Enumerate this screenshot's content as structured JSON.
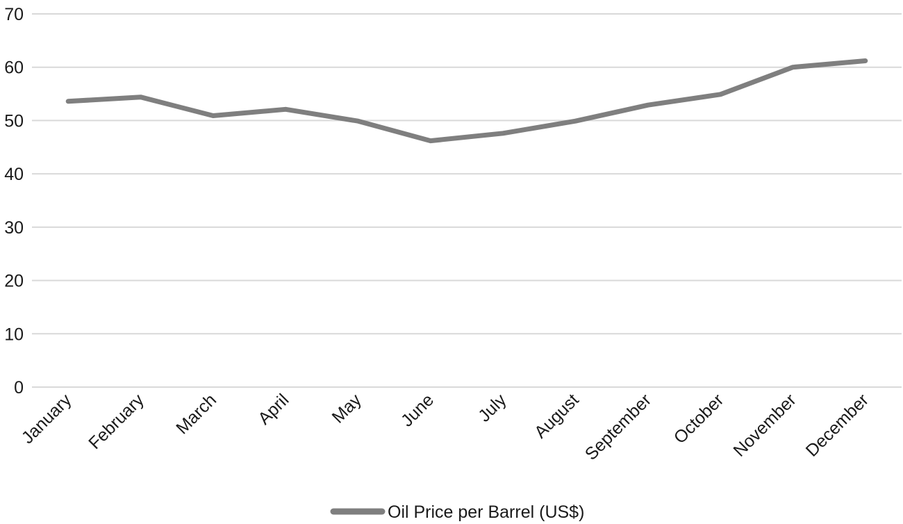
{
  "chart_data": {
    "type": "line",
    "categories": [
      "January",
      "February",
      "March",
      "April",
      "May",
      "June",
      "July",
      "August",
      "September",
      "October",
      "November",
      "December"
    ],
    "series": [
      {
        "name": "Oil Price per Barrel (US$)",
        "values": [
          53.6,
          54.4,
          50.9,
          52.1,
          49.9,
          46.2,
          47.6,
          49.9,
          52.9,
          54.9,
          60.0,
          61.2
        ],
        "color": "#7f7f7f"
      }
    ],
    "yticks": [
      "0",
      "10",
      "20",
      "30",
      "40",
      "50",
      "60",
      "70"
    ],
    "ylim": [
      0,
      70
    ],
    "grid": true,
    "legend_position": "bottom-center",
    "gridline_color": "#d9d9d9"
  }
}
